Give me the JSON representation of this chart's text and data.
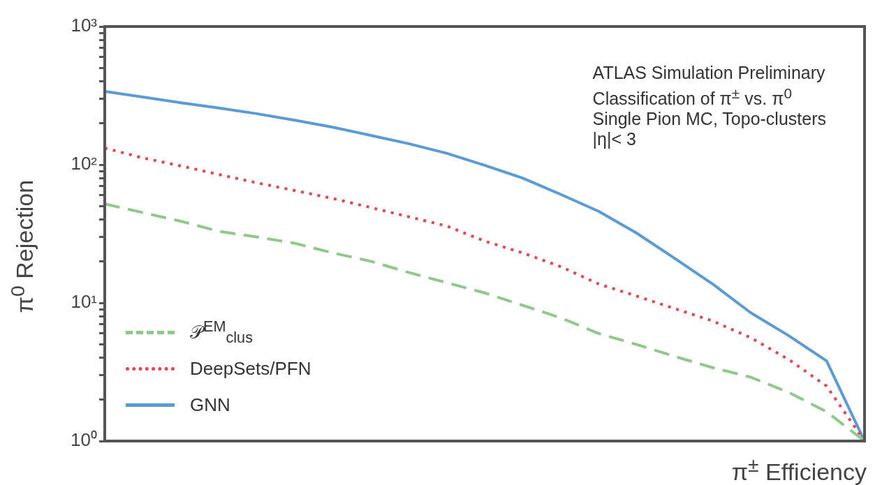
{
  "chart_data": {
    "type": "line",
    "xlabel": "π$^{±}$ Efficiency",
    "ylabel": "π$^{0}$ Rejection",
    "annotations": [
      "ATLAS Simulation Preliminary",
      "Classification of π$^{±}$ vs. π$^{0}$",
      "Single Pion MC, Topo-clusters",
      "|η|< 3"
    ],
    "categories": [
      null,
      null,
      null,
      null,
      null,
      null,
      null,
      null,
      null,
      null,
      null,
      null,
      null,
      null,
      null,
      null,
      null,
      null,
      null,
      null,
      null
    ],
    "log": "y",
    "ylim": [
      1,
      1000
    ],
    "yticks": [
      {
        "value": 1,
        "label": "10⁰"
      },
      {
        "value": 2,
        "label": null
      },
      {
        "value": 3,
        "label": null
      },
      {
        "value": 4,
        "label": null
      },
      {
        "value": 5,
        "label": null
      },
      {
        "value": 6,
        "label": null
      },
      {
        "value": 7,
        "label": null
      },
      {
        "value": 8,
        "label": null
      },
      {
        "value": 9,
        "label": null
      },
      {
        "value": 10,
        "label": "10¹"
      },
      {
        "value": 20,
        "label": null
      },
      {
        "value": 30,
        "label": null
      },
      {
        "value": 40,
        "label": null
      },
      {
        "value": 50,
        "label": null
      },
      {
        "value": 60,
        "label": null
      },
      {
        "value": 70,
        "label": null
      },
      {
        "value": 80,
        "label": null
      },
      {
        "value": 90,
        "label": null
      },
      {
        "value": 100,
        "label": "10²"
      },
      {
        "value": 200,
        "label": null
      },
      {
        "value": 300,
        "label": null
      },
      {
        "value": 400,
        "label": null
      },
      {
        "value": 500,
        "label": null
      },
      {
        "value": 600,
        "label": null
      },
      {
        "value": 700,
        "label": null
      },
      {
        "value": 800,
        "label": null
      },
      {
        "value": 900,
        "label": null
      },
      {
        "value": 1000,
        "label": "10³"
      }
    ],
    "tick_labels": "y",
    "grid": false,
    "legend": "bottom left",
    "marker": "none",
    "series": [
      {
        "name": "𝒫$^{EM}$$_{clus}$",
        "color": "#8fc98a",
        "line_style": "dashed",
        "values": [
          52,
          45,
          39,
          33,
          30,
          27,
          23,
          20,
          16.6,
          14,
          11.8,
          9.6,
          7.8,
          6,
          5,
          4.1,
          3.4,
          2.9,
          2.25,
          1.63,
          1
        ]
      },
      {
        "name": "DeepSets/PFN",
        "color": "#e8434f",
        "line_style": "dotted",
        "values": [
          132,
          112,
          98,
          85,
          74,
          65,
          57,
          49,
          42,
          36,
          28,
          23,
          18.3,
          13.7,
          11.2,
          9.1,
          7.4,
          5.6,
          3.9,
          2.5,
          1
        ]
      },
      {
        "name": "GNN",
        "color": "#5b9bd5",
        "line_style": "solid",
        "values": [
          339,
          309,
          281,
          257,
          234,
          210,
          187,
          163,
          142,
          121,
          99,
          80,
          61,
          46,
          32,
          21,
          13.7,
          8.5,
          5.8,
          3.8,
          1
        ]
      }
    ]
  }
}
